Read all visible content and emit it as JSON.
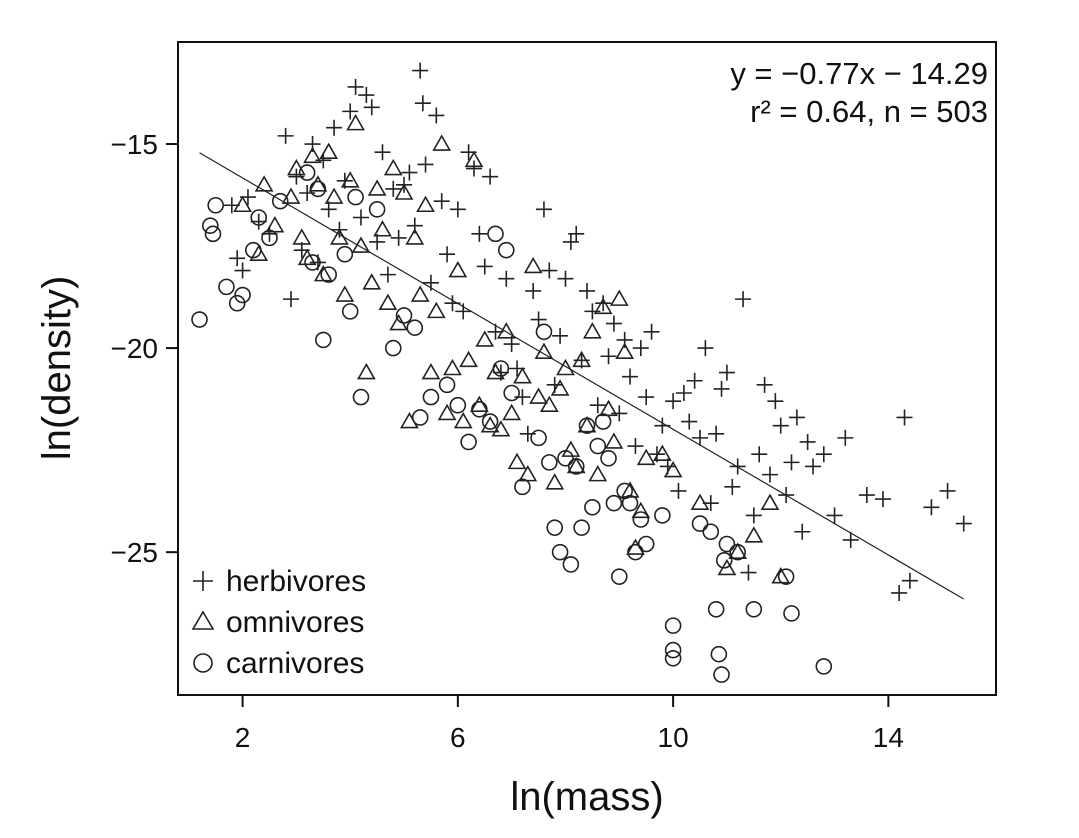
{
  "chart_data": {
    "type": "scatter",
    "title": "",
    "xlabel": "ln(mass)",
    "ylabel": "ln(density)",
    "xlim": [
      0.8,
      16.0
    ],
    "ylim": [
      -28.5,
      -12.5
    ],
    "x_ticks": [
      2,
      6,
      10,
      14
    ],
    "y_ticks": [
      -15,
      -20,
      -25
    ],
    "x_tick_labels": [
      "2",
      "6",
      "10",
      "14"
    ],
    "y_tick_labels": [
      "−15",
      "−20",
      "−25"
    ],
    "grid": false,
    "legend_position": "bottom-left",
    "annotation": {
      "equation": "y = −0.77x − 14.29",
      "stats": "r² = 0.64, n = 503"
    },
    "regression": {
      "slope": -0.77,
      "intercept": -14.29,
      "x_range": [
        1.2,
        15.4
      ]
    },
    "series": [
      {
        "name": "herbivores",
        "marker": "plus",
        "points": [
          [
            1.8,
            -16.5
          ],
          [
            1.9,
            -17.8
          ],
          [
            2.0,
            -18.1
          ],
          [
            2.1,
            -16.3
          ],
          [
            2.3,
            -16.9
          ],
          [
            2.5,
            -17.2
          ],
          [
            2.8,
            -14.8
          ],
          [
            2.9,
            -18.8
          ],
          [
            3.0,
            -15.8
          ],
          [
            3.1,
            -17.6
          ],
          [
            3.2,
            -16.2
          ],
          [
            3.3,
            -15.0
          ],
          [
            3.4,
            -17.9
          ],
          [
            3.5,
            -15.4
          ],
          [
            3.6,
            -16.6
          ],
          [
            3.7,
            -14.6
          ],
          [
            3.8,
            -17.1
          ],
          [
            3.9,
            -15.9
          ],
          [
            4.0,
            -14.2
          ],
          [
            4.1,
            -13.6
          ],
          [
            4.2,
            -16.8
          ],
          [
            4.3,
            -13.8
          ],
          [
            4.4,
            -14.1
          ],
          [
            4.5,
            -17.4
          ],
          [
            4.6,
            -15.2
          ],
          [
            4.7,
            -18.2
          ],
          [
            4.8,
            -16.1
          ],
          [
            4.9,
            -17.3
          ],
          [
            5.0,
            -16.0
          ],
          [
            5.1,
            -15.7
          ],
          [
            5.2,
            -17.0
          ],
          [
            5.3,
            -13.2
          ],
          [
            5.35,
            -14.0
          ],
          [
            5.4,
            -15.5
          ],
          [
            5.5,
            -18.4
          ],
          [
            5.6,
            -14.3
          ],
          [
            5.7,
            -16.4
          ],
          [
            5.8,
            -17.7
          ],
          [
            5.9,
            -18.9
          ],
          [
            6.0,
            -16.6
          ],
          [
            6.1,
            -19.1
          ],
          [
            6.2,
            -15.2
          ],
          [
            6.3,
            -15.6
          ],
          [
            6.4,
            -17.2
          ],
          [
            6.5,
            -18.0
          ],
          [
            6.6,
            -15.8
          ],
          [
            6.7,
            -19.6
          ],
          [
            6.8,
            -20.6
          ],
          [
            6.9,
            -18.3
          ],
          [
            7.0,
            -19.9
          ],
          [
            7.1,
            -20.5
          ],
          [
            7.2,
            -21.2
          ],
          [
            7.3,
            -22.1
          ],
          [
            7.4,
            -18.6
          ],
          [
            7.5,
            -19.3
          ],
          [
            7.6,
            -16.6
          ],
          [
            7.7,
            -18.1
          ],
          [
            7.8,
            -20.9
          ],
          [
            7.9,
            -19.7
          ],
          [
            8.0,
            -18.3
          ],
          [
            8.1,
            -17.4
          ],
          [
            8.2,
            -17.2
          ],
          [
            8.3,
            -20.3
          ],
          [
            8.4,
            -18.6
          ],
          [
            8.5,
            -19.1
          ],
          [
            8.6,
            -21.4
          ],
          [
            8.7,
            -18.9
          ],
          [
            8.8,
            -20.2
          ],
          [
            8.9,
            -19.4
          ],
          [
            9.0,
            -21.6
          ],
          [
            9.1,
            -19.8
          ],
          [
            9.2,
            -20.7
          ],
          [
            9.3,
            -22.4
          ],
          [
            9.4,
            -20.0
          ],
          [
            9.5,
            -21.2
          ],
          [
            9.6,
            -19.6
          ],
          [
            9.7,
            -22.6
          ],
          [
            9.8,
            -21.9
          ],
          [
            9.9,
            -22.9
          ],
          [
            10.0,
            -21.3
          ],
          [
            10.1,
            -23.5
          ],
          [
            10.2,
            -21.1
          ],
          [
            10.3,
            -21.8
          ],
          [
            10.4,
            -20.8
          ],
          [
            10.5,
            -22.2
          ],
          [
            10.6,
            -20.0
          ],
          [
            10.7,
            -23.8
          ],
          [
            10.8,
            -22.1
          ],
          [
            10.9,
            -21.0
          ],
          [
            11.0,
            -20.6
          ],
          [
            11.1,
            -23.4
          ],
          [
            11.2,
            -22.9
          ],
          [
            11.3,
            -18.8
          ],
          [
            11.4,
            -25.5
          ],
          [
            11.5,
            -24.1
          ],
          [
            11.6,
            -22.6
          ],
          [
            11.7,
            -20.9
          ],
          [
            11.8,
            -23.1
          ],
          [
            11.9,
            -21.3
          ],
          [
            12.0,
            -21.9
          ],
          [
            12.1,
            -23.6
          ],
          [
            12.2,
            -22.8
          ],
          [
            12.3,
            -21.7
          ],
          [
            12.4,
            -24.5
          ],
          [
            12.5,
            -22.3
          ],
          [
            12.6,
            -22.9
          ],
          [
            12.8,
            -22.6
          ],
          [
            13.0,
            -24.1
          ],
          [
            13.2,
            -22.2
          ],
          [
            13.3,
            -24.7
          ],
          [
            13.6,
            -23.6
          ],
          [
            13.9,
            -23.7
          ],
          [
            14.2,
            -26.0
          ],
          [
            14.3,
            -21.7
          ],
          [
            14.4,
            -25.7
          ],
          [
            14.8,
            -23.9
          ],
          [
            15.1,
            -23.5
          ],
          [
            15.4,
            -24.3
          ]
        ]
      },
      {
        "name": "omnivores",
        "marker": "triangle",
        "points": [
          [
            2.0,
            -16.5
          ],
          [
            2.3,
            -17.7
          ],
          [
            2.4,
            -16.0
          ],
          [
            2.6,
            -17.0
          ],
          [
            2.9,
            -16.3
          ],
          [
            3.0,
            -15.6
          ],
          [
            3.1,
            -17.3
          ],
          [
            3.2,
            -17.8
          ],
          [
            3.3,
            -15.3
          ],
          [
            3.4,
            -16.0
          ],
          [
            3.5,
            -18.2
          ],
          [
            3.6,
            -15.2
          ],
          [
            3.7,
            -16.3
          ],
          [
            3.8,
            -17.3
          ],
          [
            3.9,
            -18.7
          ],
          [
            4.0,
            -15.9
          ],
          [
            4.1,
            -14.5
          ],
          [
            4.2,
            -17.5
          ],
          [
            4.3,
            -20.6
          ],
          [
            4.4,
            -18.4
          ],
          [
            4.5,
            -16.1
          ],
          [
            4.6,
            -17.1
          ],
          [
            4.7,
            -18.9
          ],
          [
            4.8,
            -15.6
          ],
          [
            4.9,
            -19.4
          ],
          [
            5.0,
            -16.2
          ],
          [
            5.1,
            -21.8
          ],
          [
            5.2,
            -17.3
          ],
          [
            5.3,
            -18.7
          ],
          [
            5.4,
            -16.5
          ],
          [
            5.5,
            -20.6
          ],
          [
            5.6,
            -19.1
          ],
          [
            5.7,
            -15.0
          ],
          [
            5.8,
            -21.6
          ],
          [
            5.9,
            -20.5
          ],
          [
            6.0,
            -18.1
          ],
          [
            6.1,
            -21.8
          ],
          [
            6.2,
            -20.3
          ],
          [
            6.3,
            -15.4
          ],
          [
            6.4,
            -21.4
          ],
          [
            6.5,
            -19.8
          ],
          [
            6.6,
            -21.9
          ],
          [
            6.7,
            -20.6
          ],
          [
            6.8,
            -22.0
          ],
          [
            6.9,
            -19.6
          ],
          [
            7.0,
            -21.6
          ],
          [
            7.1,
            -22.8
          ],
          [
            7.2,
            -20.7
          ],
          [
            7.3,
            -23.1
          ],
          [
            7.4,
            -18.0
          ],
          [
            7.5,
            -21.2
          ],
          [
            7.6,
            -20.1
          ],
          [
            7.7,
            -21.4
          ],
          [
            7.8,
            -23.3
          ],
          [
            7.9,
            -21.0
          ],
          [
            8.0,
            -20.5
          ],
          [
            8.1,
            -22.5
          ],
          [
            8.2,
            -22.9
          ],
          [
            8.3,
            -20.3
          ],
          [
            8.4,
            -21.9
          ],
          [
            8.5,
            -19.6
          ],
          [
            8.6,
            -23.1
          ],
          [
            8.7,
            -19.0
          ],
          [
            8.8,
            -21.5
          ],
          [
            8.9,
            -22.3
          ],
          [
            9.0,
            -18.8
          ],
          [
            9.1,
            -20.1
          ],
          [
            9.2,
            -23.5
          ],
          [
            9.3,
            -24.9
          ],
          [
            9.4,
            -24.0
          ],
          [
            9.5,
            -22.7
          ],
          [
            9.8,
            -22.6
          ],
          [
            10.0,
            -23.0
          ],
          [
            10.5,
            -23.8
          ],
          [
            11.0,
            -25.4
          ],
          [
            11.2,
            -25.0
          ],
          [
            11.5,
            -24.6
          ],
          [
            11.8,
            -23.8
          ],
          [
            12.0,
            -25.6
          ]
        ]
      },
      {
        "name": "carnivores",
        "marker": "circle",
        "points": [
          [
            1.2,
            -19.3
          ],
          [
            1.4,
            -17.0
          ],
          [
            1.45,
            -17.2
          ],
          [
            1.5,
            -16.5
          ],
          [
            1.7,
            -18.5
          ],
          [
            1.9,
            -18.9
          ],
          [
            2.0,
            -18.7
          ],
          [
            2.2,
            -17.6
          ],
          [
            2.3,
            -16.8
          ],
          [
            2.5,
            -17.3
          ],
          [
            2.7,
            -16.4
          ],
          [
            3.2,
            -15.7
          ],
          [
            3.3,
            -17.9
          ],
          [
            3.4,
            -16.1
          ],
          [
            3.5,
            -19.8
          ],
          [
            3.6,
            -18.2
          ],
          [
            3.9,
            -17.7
          ],
          [
            4.0,
            -19.1
          ],
          [
            4.1,
            -16.3
          ],
          [
            4.2,
            -21.2
          ],
          [
            4.5,
            -16.6
          ],
          [
            4.8,
            -20.0
          ],
          [
            5.0,
            -19.2
          ],
          [
            5.2,
            -19.5
          ],
          [
            5.3,
            -21.7
          ],
          [
            5.5,
            -21.2
          ],
          [
            5.8,
            -20.9
          ],
          [
            6.0,
            -21.4
          ],
          [
            6.2,
            -22.3
          ],
          [
            6.4,
            -21.5
          ],
          [
            6.6,
            -21.8
          ],
          [
            6.7,
            -17.2
          ],
          [
            6.8,
            -20.5
          ],
          [
            6.9,
            -17.6
          ],
          [
            7.0,
            -21.1
          ],
          [
            7.2,
            -23.4
          ],
          [
            7.5,
            -22.2
          ],
          [
            7.6,
            -19.6
          ],
          [
            7.7,
            -22.8
          ],
          [
            7.8,
            -24.4
          ],
          [
            7.9,
            -25.0
          ],
          [
            8.0,
            -22.7
          ],
          [
            8.1,
            -25.3
          ],
          [
            8.2,
            -22.9
          ],
          [
            8.3,
            -24.4
          ],
          [
            8.4,
            -21.9
          ],
          [
            8.5,
            -23.9
          ],
          [
            8.6,
            -22.4
          ],
          [
            8.7,
            -21.8
          ],
          [
            8.8,
            -22.7
          ],
          [
            8.9,
            -23.8
          ],
          [
            9.0,
            -25.6
          ],
          [
            9.1,
            -23.5
          ],
          [
            9.2,
            -23.8
          ],
          [
            9.3,
            -25.0
          ],
          [
            9.4,
            -24.2
          ],
          [
            9.5,
            -24.8
          ],
          [
            9.8,
            -24.1
          ],
          [
            10.0,
            -26.8
          ],
          [
            10.0,
            -27.4
          ],
          [
            10.0,
            -27.6
          ],
          [
            10.5,
            -24.3
          ],
          [
            10.7,
            -24.5
          ],
          [
            10.8,
            -26.4
          ],
          [
            10.85,
            -27.5
          ],
          [
            10.9,
            -28.0
          ],
          [
            10.95,
            -25.2
          ],
          [
            11.0,
            -24.8
          ],
          [
            11.2,
            -25.0
          ],
          [
            11.5,
            -26.4
          ],
          [
            12.1,
            -25.6
          ],
          [
            12.2,
            -26.5
          ],
          [
            12.8,
            -27.8
          ]
        ]
      }
    ]
  }
}
